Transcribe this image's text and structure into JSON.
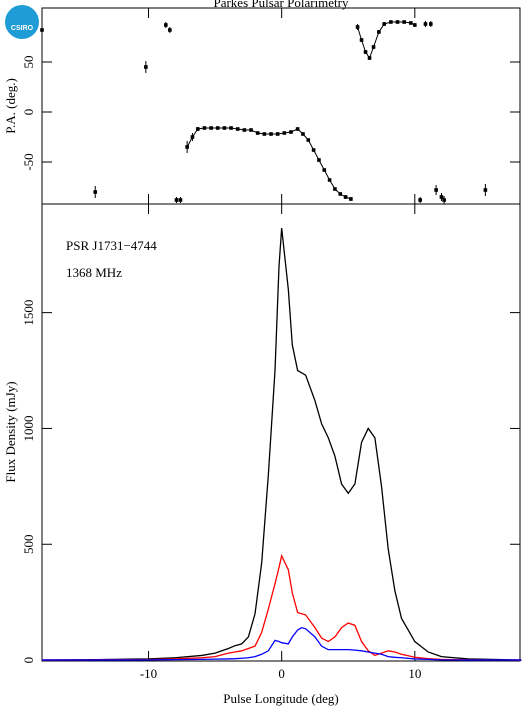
{
  "logo": "CSIRO",
  "chart_data": [
    {
      "type": "scatter",
      "title": "Parkes Pulsar Polarimetry",
      "y_label": "P.A. (deg.)",
      "x": [
        -18,
        -14,
        -10.2,
        -8.7,
        -8.4,
        -7.9,
        -7.6,
        -7.1,
        -6.7,
        -6.3,
        -5.8,
        -5.3,
        -4.8,
        -4.3,
        -3.8,
        -3.3,
        -2.8,
        -2.3,
        -1.8,
        -1.3,
        -0.8,
        -0.3,
        0.2,
        0.7,
        1.2,
        1.6,
        2.0,
        2.4,
        2.8,
        3.2,
        3.6,
        4.0,
        4.4,
        4.8,
        5.2,
        5.7,
        6.0,
        6.3,
        6.6,
        6.9,
        7.3,
        7.7,
        8.2,
        8.7,
        9.2,
        9.7,
        10.0,
        10.4,
        10.8,
        11.2,
        11.6,
        12.0,
        12.2,
        15.3
      ],
      "values": [
        82,
        -80,
        45,
        87,
        82,
        -88,
        -88,
        -35,
        -25,
        -17,
        -16,
        -16,
        -16,
        -16,
        -16,
        -17,
        -18,
        -18,
        -21,
        -22,
        -22,
        -22,
        -21,
        -20,
        -17,
        -22,
        -28,
        -38,
        -48,
        -58,
        -68,
        -77,
        -82,
        -85,
        -87,
        85,
        72,
        60,
        54,
        65,
        80,
        88,
        90,
        90,
        90,
        89,
        87,
        -88,
        88,
        88,
        -78,
        -85,
        -88,
        -78
      ],
      "errors": [
        8,
        6,
        6,
        3,
        3,
        3,
        3,
        6,
        4,
        2,
        1,
        1,
        1,
        1,
        1,
        1,
        1,
        1,
        1,
        1,
        1,
        1,
        1,
        1,
        1,
        1,
        1,
        1,
        1,
        1,
        1,
        1,
        1,
        2,
        2,
        3,
        2,
        2,
        2,
        2,
        2,
        2,
        1,
        1,
        1,
        1,
        2,
        3,
        3,
        3,
        5,
        4,
        4,
        6
      ],
      "color": "#000000",
      "xlim": [
        -18,
        17.9
      ],
      "ylim": [
        -92,
        104
      ],
      "yticks": [
        -50,
        0,
        50
      ],
      "xticks": [
        -10,
        0,
        10
      ]
    },
    {
      "type": "line",
      "x_label": "Pulse Longitude (deg)",
      "y_label": "Flux Density (mJy)",
      "annotations": [
        "PSR J1731−4744",
        "1368 MHz"
      ],
      "x": [
        -18,
        -14,
        -10,
        -8,
        -6,
        -5,
        -4,
        -3.5,
        -3,
        -2.5,
        -2,
        -1.5,
        -1,
        -0.5,
        -0.2,
        0,
        0.5,
        0.8,
        1.2,
        1.5,
        1.8,
        2.5,
        3,
        3.5,
        4,
        4.5,
        5,
        5.5,
        6,
        6.5,
        7,
        7.5,
        8,
        8.5,
        9,
        10,
        11,
        12,
        14,
        18
      ],
      "series": [
        {
          "color": "#000000",
          "values": [
            0,
            2,
            5,
            10,
            20,
            30,
            50,
            62,
            70,
            100,
            200,
            420,
            800,
            1250,
            1700,
            1865,
            1600,
            1360,
            1250,
            1240,
            1230,
            1120,
            1020,
            960,
            880,
            760,
            720,
            760,
            940,
            1000,
            960,
            750,
            480,
            300,
            180,
            80,
            35,
            15,
            5,
            0
          ]
        },
        {
          "color": "#ff0000",
          "values": [
            0,
            1,
            2,
            5,
            10,
            15,
            30,
            35,
            40,
            50,
            60,
            120,
            220,
            330,
            400,
            450,
            390,
            290,
            205,
            200,
            195,
            140,
            95,
            80,
            100,
            140,
            160,
            150,
            80,
            40,
            20,
            30,
            40,
            35,
            25,
            12,
            6,
            3,
            1,
            0
          ]
        },
        {
          "color": "#0000ff",
          "values": [
            0,
            0,
            1,
            2,
            3,
            4,
            5,
            6,
            8,
            10,
            15,
            25,
            40,
            85,
            80,
            75,
            70,
            100,
            130,
            140,
            135,
            100,
            60,
            45,
            45,
            45,
            45,
            43,
            40,
            35,
            30,
            25,
            15,
            12,
            10,
            5,
            3,
            1,
            0,
            0
          ]
        }
      ],
      "xlim": [
        -18,
        17.9
      ],
      "ylim": [
        -4,
        1969
      ],
      "yticks": [
        0,
        500,
        1000,
        1500
      ],
      "xticks": [
        -10,
        0,
        10
      ]
    }
  ]
}
